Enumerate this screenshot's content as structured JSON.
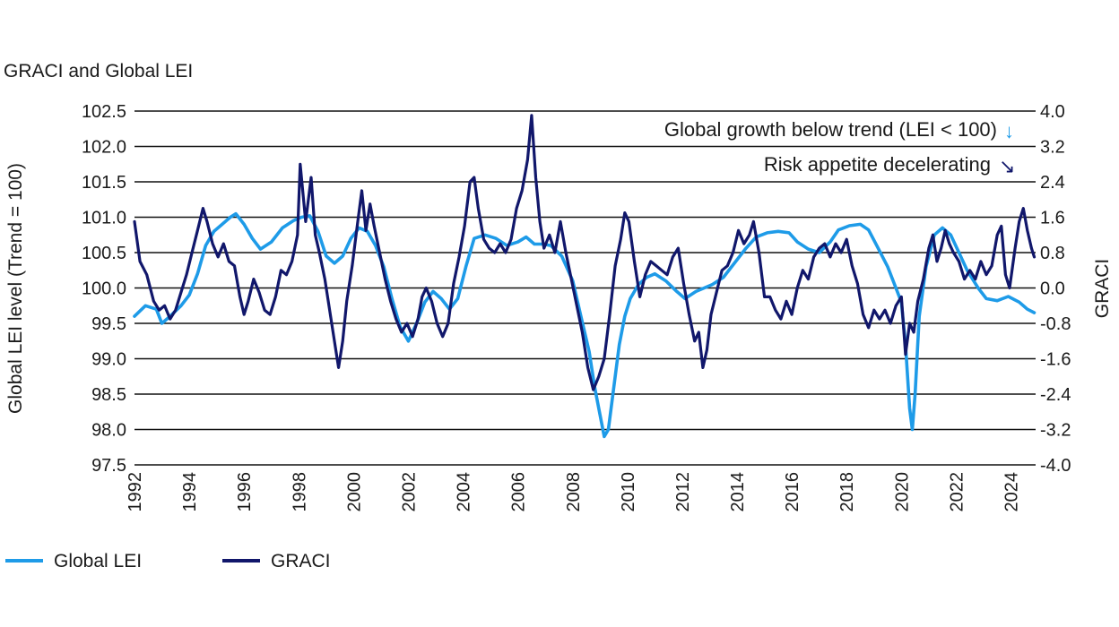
{
  "chart_data": {
    "type": "line",
    "title": "GRACI and Global LEI",
    "ylabel_left": "Global LEI level (Trend = 100)",
    "ylabel_right": "GRACI",
    "ylim_left": [
      97.5,
      102.5
    ],
    "ylim_right": [
      -4.0,
      4.0
    ],
    "xlim": [
      1992,
      2024.9
    ],
    "grid": true,
    "legend_position": "bottom-left",
    "x_ticks": [
      "1992",
      "1994",
      "1996",
      "1998",
      "2000",
      "2002",
      "2004",
      "2006",
      "2008",
      "2010",
      "2012",
      "2014",
      "2016",
      "2018",
      "2020",
      "2022",
      "2024"
    ],
    "y_ticks_left": [
      "102.5",
      "102.0",
      "101.5",
      "101.0",
      "100.5",
      "100.0",
      "99.5",
      "99.0",
      "98.5",
      "98.0",
      "97.5"
    ],
    "y_ticks_right": [
      "4.0",
      "3.2",
      "2.4",
      "1.6",
      "0.8",
      "0.0",
      "-0.8",
      "-1.6",
      "-2.4",
      "-3.2",
      "-4.0"
    ],
    "annotations": [
      {
        "text": "Global growth below trend (LEI < 100)",
        "arrow": "↓"
      },
      {
        "text": "Risk appetite decelerating",
        "arrow": "↘"
      }
    ],
    "series": [
      {
        "name": "Global LEI",
        "axis": "left",
        "color": "#1e9be8",
        "points": [
          [
            1992.0,
            99.6
          ],
          [
            1992.4,
            99.75
          ],
          [
            1992.8,
            99.7
          ],
          [
            1993.0,
            99.5
          ],
          [
            1993.3,
            99.6
          ],
          [
            1993.7,
            99.75
          ],
          [
            1994.0,
            99.9
          ],
          [
            1994.3,
            100.2
          ],
          [
            1994.6,
            100.6
          ],
          [
            1994.9,
            100.8
          ],
          [
            1995.2,
            100.9
          ],
          [
            1995.5,
            101.0
          ],
          [
            1995.7,
            101.05
          ],
          [
            1996.0,
            100.9
          ],
          [
            1996.3,
            100.7
          ],
          [
            1996.6,
            100.55
          ],
          [
            1997.0,
            100.65
          ],
          [
            1997.4,
            100.85
          ],
          [
            1997.8,
            100.95
          ],
          [
            1998.1,
            101.0
          ],
          [
            1998.4,
            101.02
          ],
          [
            1998.7,
            100.8
          ],
          [
            1999.0,
            100.45
          ],
          [
            1999.3,
            100.35
          ],
          [
            1999.6,
            100.45
          ],
          [
            1999.9,
            100.7
          ],
          [
            2000.2,
            100.85
          ],
          [
            2000.5,
            100.8
          ],
          [
            2000.8,
            100.6
          ],
          [
            2001.1,
            100.3
          ],
          [
            2001.4,
            99.85
          ],
          [
            2001.7,
            99.45
          ],
          [
            2002.0,
            99.25
          ],
          [
            2002.3,
            99.5
          ],
          [
            2002.6,
            99.8
          ],
          [
            2002.9,
            99.95
          ],
          [
            2003.2,
            99.85
          ],
          [
            2003.5,
            99.7
          ],
          [
            2003.8,
            99.85
          ],
          [
            2004.1,
            100.3
          ],
          [
            2004.4,
            100.7
          ],
          [
            2004.8,
            100.75
          ],
          [
            2005.2,
            100.7
          ],
          [
            2005.6,
            100.6
          ],
          [
            2006.0,
            100.65
          ],
          [
            2006.3,
            100.72
          ],
          [
            2006.6,
            100.62
          ],
          [
            2006.9,
            100.62
          ],
          [
            2007.2,
            100.6
          ],
          [
            2007.6,
            100.45
          ],
          [
            2008.0,
            100.1
          ],
          [
            2008.3,
            99.6
          ],
          [
            2008.6,
            99.1
          ],
          [
            2008.8,
            98.6
          ],
          [
            2009.0,
            98.2
          ],
          [
            2009.15,
            97.9
          ],
          [
            2009.3,
            98.0
          ],
          [
            2009.5,
            98.6
          ],
          [
            2009.7,
            99.2
          ],
          [
            2009.9,
            99.6
          ],
          [
            2010.1,
            99.85
          ],
          [
            2010.4,
            100.05
          ],
          [
            2010.7,
            100.15
          ],
          [
            2011.0,
            100.2
          ],
          [
            2011.4,
            100.1
          ],
          [
            2011.8,
            99.95
          ],
          [
            2012.1,
            99.85
          ],
          [
            2012.5,
            99.95
          ],
          [
            2012.8,
            100.0
          ],
          [
            2013.1,
            100.05
          ],
          [
            2013.5,
            100.15
          ],
          [
            2013.9,
            100.35
          ],
          [
            2014.3,
            100.55
          ],
          [
            2014.7,
            100.72
          ],
          [
            2015.1,
            100.78
          ],
          [
            2015.5,
            100.8
          ],
          [
            2015.9,
            100.78
          ],
          [
            2016.2,
            100.65
          ],
          [
            2016.6,
            100.55
          ],
          [
            2017.0,
            100.5
          ],
          [
            2017.4,
            100.65
          ],
          [
            2017.7,
            100.82
          ],
          [
            2018.1,
            100.88
          ],
          [
            2018.5,
            100.9
          ],
          [
            2018.8,
            100.82
          ],
          [
            2019.1,
            100.6
          ],
          [
            2019.5,
            100.3
          ],
          [
            2019.8,
            100.0
          ],
          [
            2020.0,
            99.8
          ],
          [
            2020.15,
            99.2
          ],
          [
            2020.3,
            98.3
          ],
          [
            2020.4,
            98.0
          ],
          [
            2020.5,
            98.5
          ],
          [
            2020.65,
            99.6
          ],
          [
            2020.9,
            100.3
          ],
          [
            2021.2,
            100.75
          ],
          [
            2021.5,
            100.85
          ],
          [
            2021.8,
            100.75
          ],
          [
            2022.1,
            100.5
          ],
          [
            2022.4,
            100.25
          ],
          [
            2022.8,
            100.0
          ],
          [
            2023.1,
            99.85
          ],
          [
            2023.5,
            99.82
          ],
          [
            2023.9,
            99.88
          ],
          [
            2024.3,
            99.8
          ],
          [
            2024.6,
            99.7
          ],
          [
            2024.85,
            99.65
          ]
        ]
      },
      {
        "name": "GRACI",
        "axis": "right",
        "color": "#11176b",
        "points": [
          [
            1992.0,
            1.5
          ],
          [
            1992.2,
            0.6
          ],
          [
            1992.45,
            0.3
          ],
          [
            1992.7,
            -0.3
          ],
          [
            1992.9,
            -0.5
          ],
          [
            1993.1,
            -0.4
          ],
          [
            1993.3,
            -0.7
          ],
          [
            1993.5,
            -0.5
          ],
          [
            1993.7,
            -0.1
          ],
          [
            1993.9,
            0.3
          ],
          [
            1994.1,
            0.8
          ],
          [
            1994.3,
            1.3
          ],
          [
            1994.5,
            1.8
          ],
          [
            1994.65,
            1.5
          ],
          [
            1994.85,
            1.0
          ],
          [
            1995.05,
            0.7
          ],
          [
            1995.25,
            1.0
          ],
          [
            1995.45,
            0.6
          ],
          [
            1995.65,
            0.5
          ],
          [
            1995.85,
            -0.2
          ],
          [
            1996.0,
            -0.6
          ],
          [
            1996.15,
            -0.3
          ],
          [
            1996.35,
            0.2
          ],
          [
            1996.55,
            -0.1
          ],
          [
            1996.75,
            -0.5
          ],
          [
            1996.95,
            -0.6
          ],
          [
            1997.15,
            -0.2
          ],
          [
            1997.35,
            0.4
          ],
          [
            1997.55,
            0.3
          ],
          [
            1997.75,
            0.6
          ],
          [
            1997.95,
            1.2
          ],
          [
            1998.05,
            2.8
          ],
          [
            1998.25,
            1.5
          ],
          [
            1998.45,
            2.5
          ],
          [
            1998.6,
            1.2
          ],
          [
            1998.75,
            0.8
          ],
          [
            1998.95,
            0.2
          ],
          [
            1999.15,
            -0.6
          ],
          [
            1999.35,
            -1.4
          ],
          [
            1999.45,
            -1.8
          ],
          [
            1999.6,
            -1.2
          ],
          [
            1999.75,
            -0.3
          ],
          [
            1999.95,
            0.5
          ],
          [
            2000.15,
            1.5
          ],
          [
            2000.3,
            2.2
          ],
          [
            2000.45,
            1.3
          ],
          [
            2000.6,
            1.9
          ],
          [
            2000.75,
            1.4
          ],
          [
            2000.95,
            0.8
          ],
          [
            2001.15,
            0.2
          ],
          [
            2001.35,
            -0.3
          ],
          [
            2001.55,
            -0.7
          ],
          [
            2001.75,
            -1.0
          ],
          [
            2001.95,
            -0.8
          ],
          [
            2002.15,
            -1.1
          ],
          [
            2002.35,
            -0.7
          ],
          [
            2002.5,
            -0.2
          ],
          [
            2002.65,
            0.0
          ],
          [
            2002.85,
            -0.3
          ],
          [
            2003.05,
            -0.8
          ],
          [
            2003.25,
            -1.1
          ],
          [
            2003.45,
            -0.8
          ],
          [
            2003.65,
            0.1
          ],
          [
            2003.85,
            0.7
          ],
          [
            2004.05,
            1.4
          ],
          [
            2004.25,
            2.4
          ],
          [
            2004.4,
            2.5
          ],
          [
            2004.55,
            1.8
          ],
          [
            2004.75,
            1.1
          ],
          [
            2004.95,
            0.9
          ],
          [
            2005.15,
            0.8
          ],
          [
            2005.35,
            1.0
          ],
          [
            2005.55,
            0.8
          ],
          [
            2005.75,
            1.1
          ],
          [
            2005.95,
            1.8
          ],
          [
            2006.15,
            2.2
          ],
          [
            2006.35,
            2.9
          ],
          [
            2006.5,
            3.9
          ],
          [
            2006.65,
            2.5
          ],
          [
            2006.8,
            1.5
          ],
          [
            2006.95,
            0.9
          ],
          [
            2007.15,
            1.2
          ],
          [
            2007.35,
            0.8
          ],
          [
            2007.55,
            1.5
          ],
          [
            2007.75,
            0.8
          ],
          [
            2007.95,
            0.2
          ],
          [
            2008.15,
            -0.4
          ],
          [
            2008.35,
            -1.0
          ],
          [
            2008.55,
            -1.8
          ],
          [
            2008.75,
            -2.3
          ],
          [
            2008.95,
            -2.0
          ],
          [
            2009.15,
            -1.6
          ],
          [
            2009.35,
            -0.6
          ],
          [
            2009.55,
            0.5
          ],
          [
            2009.75,
            1.1
          ],
          [
            2009.9,
            1.7
          ],
          [
            2010.05,
            1.5
          ],
          [
            2010.25,
            0.6
          ],
          [
            2010.45,
            -0.2
          ],
          [
            2010.65,
            0.3
          ],
          [
            2010.85,
            0.6
          ],
          [
            2011.05,
            0.5
          ],
          [
            2011.25,
            0.4
          ],
          [
            2011.45,
            0.3
          ],
          [
            2011.65,
            0.7
          ],
          [
            2011.85,
            0.9
          ],
          [
            2012.05,
            0.1
          ],
          [
            2012.25,
            -0.6
          ],
          [
            2012.45,
            -1.2
          ],
          [
            2012.6,
            -1.0
          ],
          [
            2012.75,
            -1.8
          ],
          [
            2012.9,
            -1.4
          ],
          [
            2013.05,
            -0.6
          ],
          [
            2013.25,
            -0.1
          ],
          [
            2013.45,
            0.4
          ],
          [
            2013.65,
            0.5
          ],
          [
            2013.85,
            0.8
          ],
          [
            2014.05,
            1.3
          ],
          [
            2014.25,
            1.0
          ],
          [
            2014.45,
            1.2
          ],
          [
            2014.6,
            1.5
          ],
          [
            2014.8,
            0.8
          ],
          [
            2015.0,
            -0.2
          ],
          [
            2015.2,
            -0.2
          ],
          [
            2015.4,
            -0.5
          ],
          [
            2015.6,
            -0.7
          ],
          [
            2015.8,
            -0.3
          ],
          [
            2016.0,
            -0.6
          ],
          [
            2016.2,
            0.0
          ],
          [
            2016.4,
            0.4
          ],
          [
            2016.6,
            0.2
          ],
          [
            2016.8,
            0.7
          ],
          [
            2017.0,
            0.9
          ],
          [
            2017.2,
            1.0
          ],
          [
            2017.4,
            0.7
          ],
          [
            2017.6,
            1.0
          ],
          [
            2017.8,
            0.8
          ],
          [
            2018.0,
            1.1
          ],
          [
            2018.2,
            0.5
          ],
          [
            2018.4,
            0.1
          ],
          [
            2018.6,
            -0.6
          ],
          [
            2018.8,
            -0.9
          ],
          [
            2019.0,
            -0.5
          ],
          [
            2019.2,
            -0.7
          ],
          [
            2019.4,
            -0.5
          ],
          [
            2019.6,
            -0.8
          ],
          [
            2019.8,
            -0.4
          ],
          [
            2020.0,
            -0.2
          ],
          [
            2020.15,
            -1.5
          ],
          [
            2020.3,
            -0.8
          ],
          [
            2020.45,
            -1.0
          ],
          [
            2020.6,
            -0.3
          ],
          [
            2020.8,
            0.2
          ],
          [
            2021.0,
            0.9
          ],
          [
            2021.15,
            1.2
          ],
          [
            2021.3,
            0.6
          ],
          [
            2021.45,
            0.9
          ],
          [
            2021.6,
            1.3
          ],
          [
            2021.75,
            1.0
          ],
          [
            2021.9,
            0.8
          ],
          [
            2022.1,
            0.6
          ],
          [
            2022.3,
            0.2
          ],
          [
            2022.5,
            0.4
          ],
          [
            2022.7,
            0.2
          ],
          [
            2022.9,
            0.6
          ],
          [
            2023.1,
            0.3
          ],
          [
            2023.3,
            0.5
          ],
          [
            2023.5,
            1.2
          ],
          [
            2023.65,
            1.4
          ],
          [
            2023.8,
            0.3
          ],
          [
            2023.95,
            0.0
          ],
          [
            2024.15,
            0.9
          ],
          [
            2024.3,
            1.5
          ],
          [
            2024.45,
            1.8
          ],
          [
            2024.6,
            1.3
          ],
          [
            2024.75,
            0.9
          ],
          [
            2024.85,
            0.7
          ]
        ]
      }
    ]
  },
  "legend": [
    {
      "label": "Global LEI",
      "color": "#1e9be8"
    },
    {
      "label": "GRACI",
      "color": "#11176b"
    }
  ]
}
